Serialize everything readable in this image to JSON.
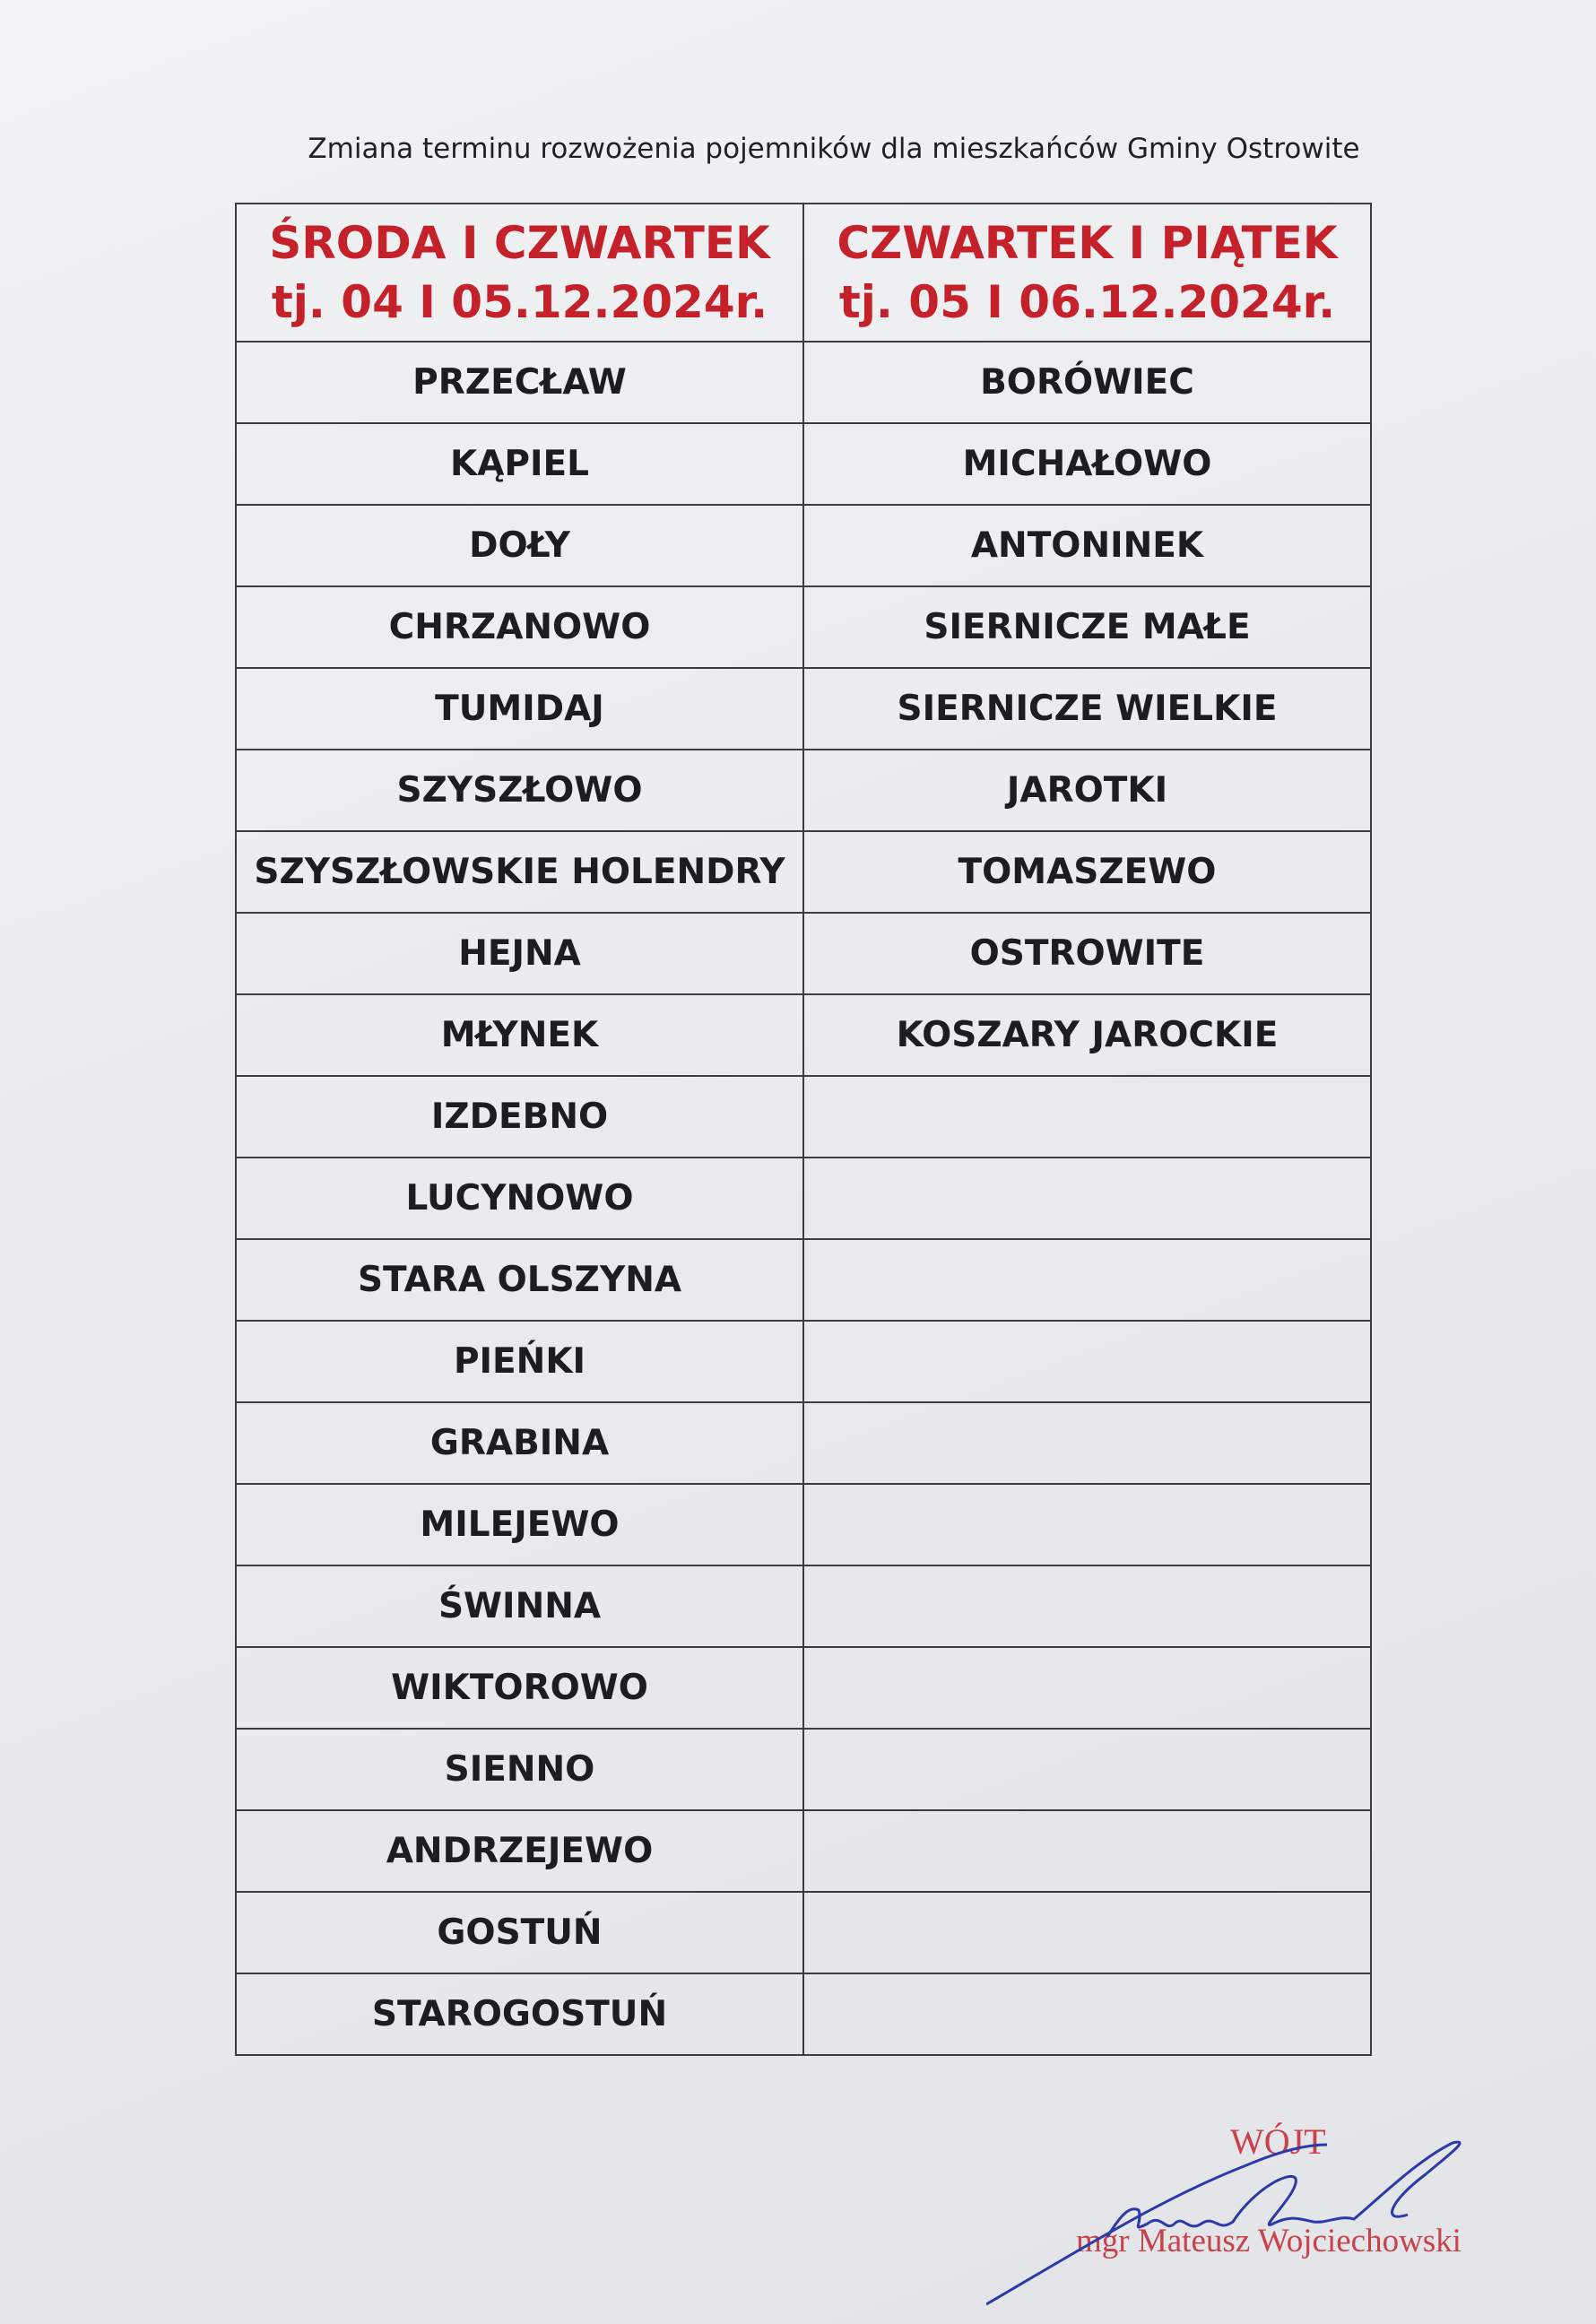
{
  "title": "Zmiana terminu rozwożenia pojemników dla mieszkańców Gminy Ostrowite",
  "columns": [
    {
      "day": "ŚRODA I CZWARTEK",
      "date": "tj. 04 I 05.12.2024r."
    },
    {
      "day": "CZWARTEK I PIĄTEK",
      "date": "tj. 05 I 06.12.2024r."
    }
  ],
  "rows": [
    [
      "PRZECŁAW",
      "BORÓWIEC"
    ],
    [
      "KĄPIEL",
      "MICHAŁOWO"
    ],
    [
      "DOŁY",
      "ANTONINEK"
    ],
    [
      "CHRZANOWO",
      "SIERNICZE MAŁE"
    ],
    [
      "TUMIDAJ",
      "SIERNICZE WIELKIE"
    ],
    [
      "SZYSZŁOWO",
      "JAROTKI"
    ],
    [
      "SZYSZŁOWSKIE HOLENDRY",
      "TOMASZEWO"
    ],
    [
      "HEJNA",
      "OSTROWITE"
    ],
    [
      "MŁYNEK",
      "KOSZARY JAROCKIE"
    ],
    [
      "IZDEBNO",
      ""
    ],
    [
      "LUCYNOWO",
      ""
    ],
    [
      "STARA OLSZYNA",
      ""
    ],
    [
      "PIEŃKI",
      ""
    ],
    [
      "GRABINA",
      ""
    ],
    [
      "MILEJEWO",
      ""
    ],
    [
      "ŚWINNA",
      ""
    ],
    [
      "WIKTOROWO",
      ""
    ],
    [
      "SIENNO",
      ""
    ],
    [
      "ANDRZEJEWO",
      ""
    ],
    [
      "GOSTUŃ",
      ""
    ],
    [
      "STAROGOSTUŃ",
      ""
    ]
  ],
  "stamp": {
    "role": "WÓJT",
    "name": "mgr Mateusz Wojciechowski",
    "color": "#c9424a"
  },
  "signature_color": "#2b3aa8",
  "header_color": "#c4212b"
}
